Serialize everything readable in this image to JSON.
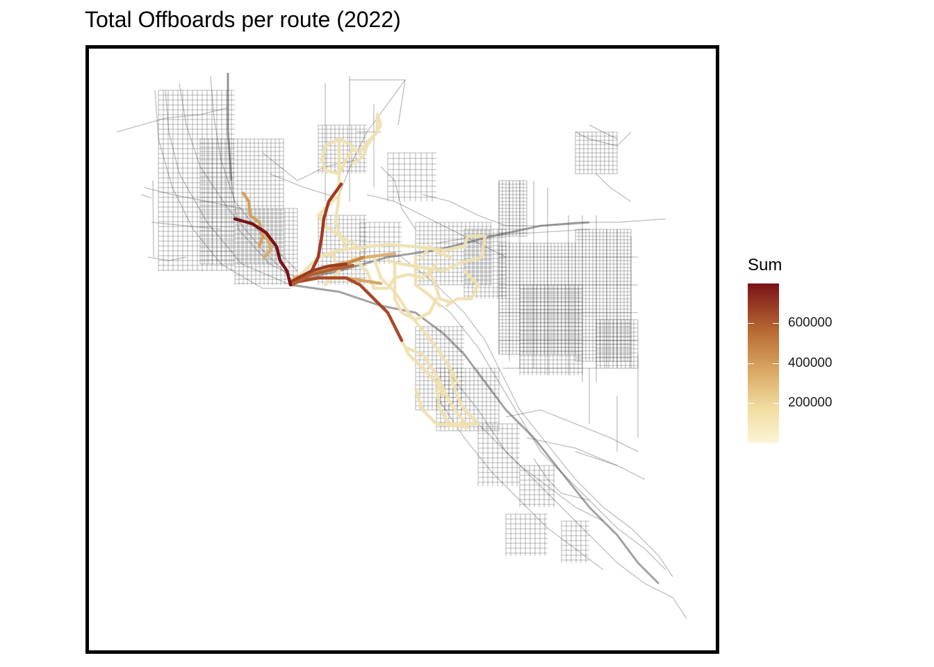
{
  "title": "Total Offboards per route (2022)",
  "legend": {
    "title": "Sum",
    "ticks": [
      {
        "label": "600000",
        "value": 600000
      },
      {
        "label": "400000",
        "value": 400000
      },
      {
        "label": "200000",
        "value": 200000
      }
    ],
    "range": [
      0,
      800000
    ],
    "colors": {
      "low": "#fbf5d6",
      "high": "#7a1216"
    }
  },
  "map": {
    "background_street_color": "#3a3a3a",
    "routes_legend_position": "right"
  }
}
